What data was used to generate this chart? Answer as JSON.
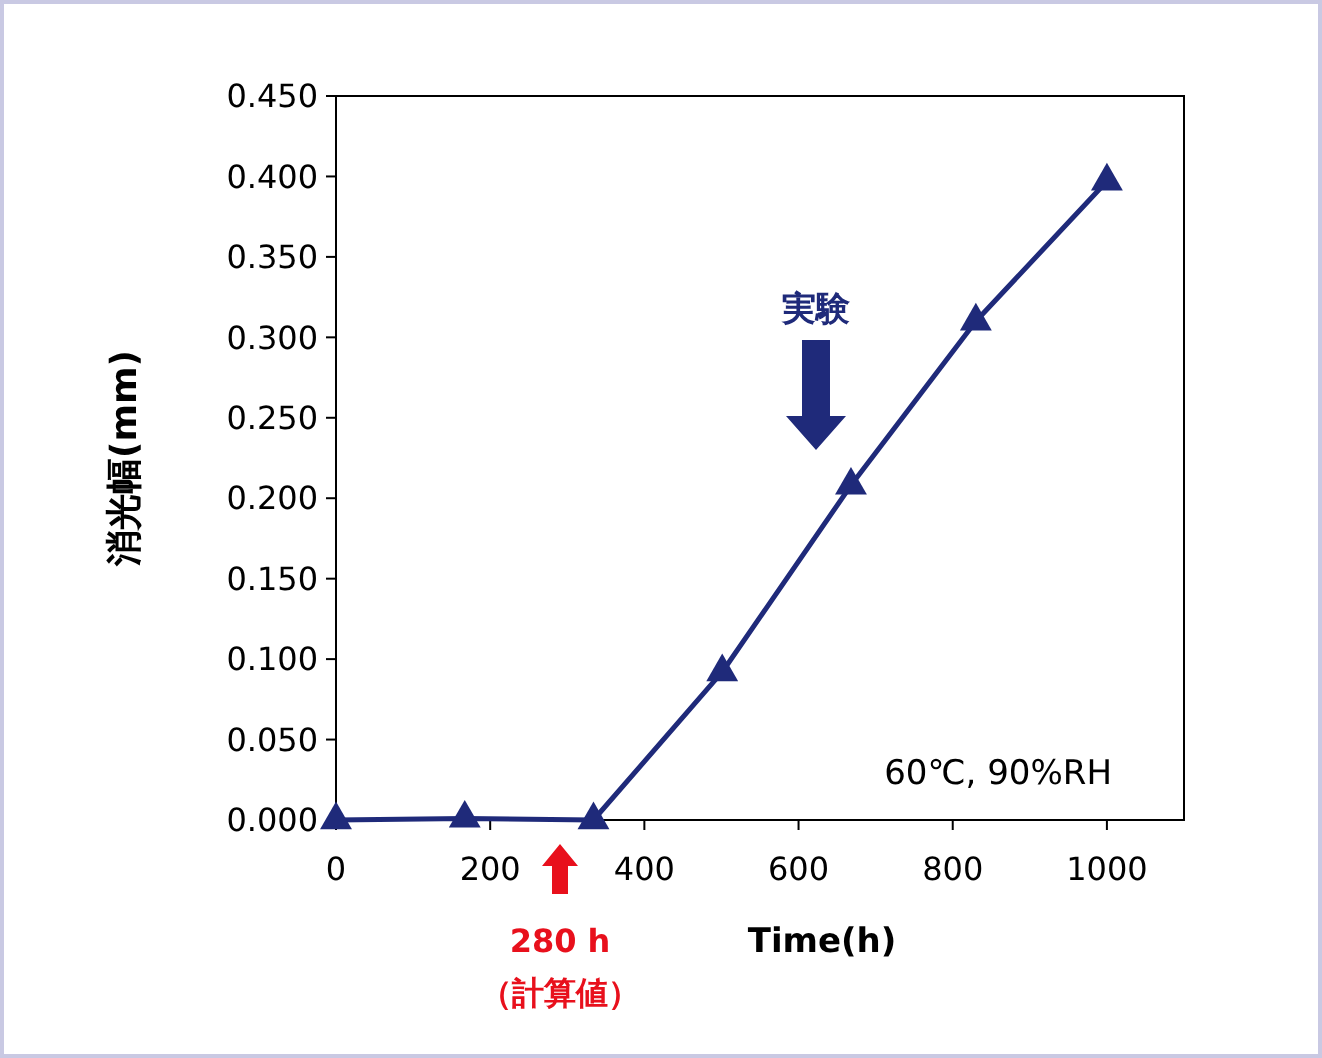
{
  "chart_data": {
    "type": "line",
    "xlabel": "Time(h)",
    "ylabel": "消光幅(mm)",
    "x": [
      0,
      167,
      334,
      501,
      668,
      830,
      1000
    ],
    "series": [
      {
        "color": "#1f2a7a",
        "values": [
          0.0,
          0.001,
          0.0,
          0.092,
          0.208,
          0.31,
          0.397
        ]
      }
    ],
    "xlim": [
      0,
      1100
    ],
    "xticks": [
      0,
      200,
      400,
      600,
      800,
      1000
    ],
    "ylim": [
      0,
      0.45
    ],
    "yticks": [
      {
        "value": 0,
        "label": "0.000"
      },
      {
        "value": 0.05,
        "label": "0.050"
      },
      {
        "value": 0.1,
        "label": "0.100"
      },
      {
        "value": 0.15,
        "label": "0.150"
      },
      {
        "value": 0.2,
        "label": "0.200"
      },
      {
        "value": 0.25,
        "label": "0.250"
      },
      {
        "value": 0.3,
        "label": "0.300"
      },
      {
        "value": 0.35,
        "label": "0.350"
      },
      {
        "value": 0.4,
        "label": "0.400"
      },
      {
        "value": 0.45,
        "label": "0.450"
      }
    ],
    "marker": "triangle",
    "grid": false,
    "annotations": [
      "実験",
      "280 h\n（計算値）",
      "60℃, 90%RH"
    ]
  }
}
